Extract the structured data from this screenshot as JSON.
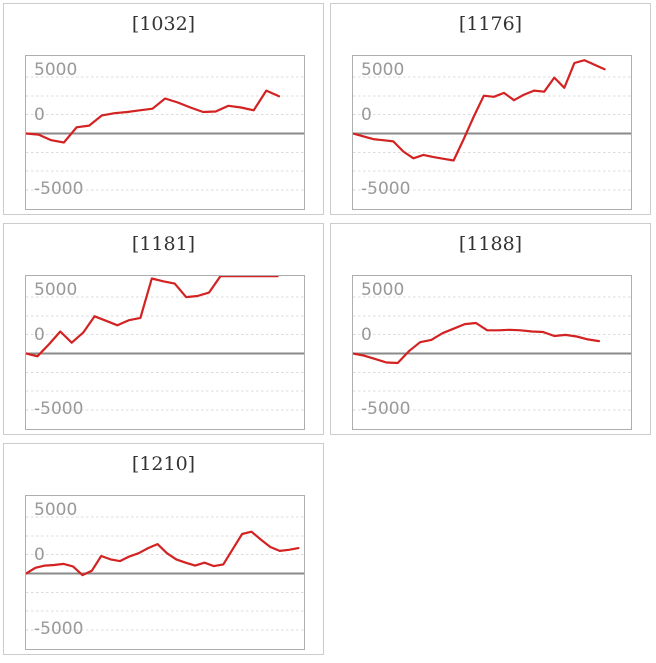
{
  "colors": {
    "line": "#d32222",
    "zero_line": "#8a8a8a",
    "gridline": "#dbdbdb",
    "axis_label": "#999999",
    "title": "#333333",
    "card_border": "#cccccc",
    "plot_border": "#aeaeae",
    "background": "#ffffff"
  },
  "axis": {
    "ylim": [
      -6700,
      6870
    ],
    "dashed_gridlines": [
      5000,
      3333,
      1667,
      -1667,
      -3333,
      -5000
    ],
    "zero_line_value": 0,
    "grid_style": "dashed",
    "legend": "none"
  },
  "chart_data": [
    {
      "type": "line",
      "title": "[1032]",
      "yticks": [
        "5000",
        "0",
        "-5000"
      ],
      "ylim": [
        -6700,
        6870
      ],
      "end_fraction": 0.91,
      "values": [
        0,
        -100,
        -600,
        -800,
        550,
        700,
        1600,
        1800,
        1900,
        2050,
        2200,
        3100,
        2750,
        2300,
        1900,
        1950,
        2450,
        2300,
        2050,
        3800,
        3300
      ]
    },
    {
      "type": "line",
      "title": "[1176]",
      "yticks": [
        "5000",
        "0",
        "-5000"
      ],
      "ylim": [
        -6700,
        6870
      ],
      "end_fraction": 0.905,
      "values": [
        0,
        -250,
        -500,
        -600,
        -700,
        -1600,
        -2200,
        -1900,
        -2100,
        -2250,
        -2400,
        -500,
        1500,
        3350,
        3250,
        3600,
        2950,
        3450,
        3800,
        3700,
        4950,
        4050,
        6250,
        6500,
        6100,
        5700
      ]
    },
    {
      "type": "line",
      "title": "[1181]",
      "yticks": [
        "5000",
        "0",
        "-5000"
      ],
      "ylim": [
        -6700,
        6870
      ],
      "end_fraction": 0.905,
      "values": [
        0,
        -250,
        800,
        1950,
        950,
        1850,
        3300,
        2900,
        2500,
        2950,
        3150,
        6650,
        6400,
        6200,
        5000,
        5100,
        5400,
        6850,
        6850,
        6850,
        6850,
        6850,
        6850
      ]
    },
    {
      "type": "line",
      "title": "[1188]",
      "yticks": [
        "5000",
        "0",
        "-5000"
      ],
      "ylim": [
        -6700,
        6870
      ],
      "end_fraction": 0.885,
      "values": [
        0,
        -200,
        -500,
        -800,
        -850,
        200,
        1000,
        1200,
        1800,
        2200,
        2600,
        2700,
        2050,
        2050,
        2100,
        2050,
        1950,
        1900,
        1550,
        1650,
        1500,
        1250,
        1100
      ]
    },
    {
      "type": "line",
      "title": "[1210]",
      "yticks": [
        "5000",
        "0",
        "-5000"
      ],
      "ylim": [
        -6700,
        6870
      ],
      "end_fraction": 0.98,
      "values": [
        0,
        500,
        700,
        750,
        850,
        630,
        -150,
        240,
        1550,
        1250,
        1100,
        1500,
        1800,
        2250,
        2600,
        1800,
        1250,
        950,
        700,
        950,
        650,
        800,
        2150,
        3500,
        3700,
        3000,
        2350,
        2000,
        2100,
        2250
      ]
    }
  ]
}
